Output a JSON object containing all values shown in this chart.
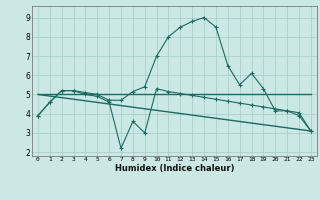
{
  "xlabel": "Humidex (Indice chaleur)",
  "bg_color": "#cce8e4",
  "grid_color": "#aacfcb",
  "line_color": "#1a6b5e",
  "xlim": [
    -0.5,
    23.5
  ],
  "ylim": [
    1.8,
    9.6
  ],
  "yticks": [
    2,
    3,
    4,
    5,
    6,
    7,
    8,
    9
  ],
  "xticks": [
    0,
    1,
    2,
    3,
    4,
    5,
    6,
    7,
    8,
    9,
    10,
    11,
    12,
    13,
    14,
    15,
    16,
    17,
    18,
    19,
    20,
    21,
    22,
    23
  ],
  "series1_x": [
    0,
    1,
    2,
    3,
    4,
    5,
    6,
    7,
    8,
    9,
    10,
    11,
    12,
    13,
    14,
    15,
    16,
    17,
    18,
    19,
    20,
    21,
    22,
    23
  ],
  "series1_y": [
    3.9,
    4.6,
    5.2,
    5.2,
    5.1,
    5.0,
    4.7,
    4.7,
    5.15,
    5.4,
    7.0,
    8.0,
    8.5,
    8.8,
    9.0,
    8.5,
    6.5,
    5.5,
    6.1,
    5.3,
    4.15,
    4.15,
    3.9,
    3.1
  ],
  "series2_x": [
    0,
    1,
    2,
    3,
    4,
    5,
    6,
    7,
    8,
    9,
    10,
    11,
    12,
    13,
    14,
    15,
    16,
    17,
    18,
    19,
    20,
    21,
    22,
    23
  ],
  "series2_y": [
    3.9,
    4.6,
    5.2,
    5.2,
    5.0,
    4.9,
    4.6,
    2.2,
    3.6,
    3.0,
    5.3,
    5.15,
    5.05,
    4.95,
    4.85,
    4.75,
    4.65,
    4.55,
    4.45,
    4.35,
    4.25,
    4.15,
    4.05,
    3.1
  ],
  "series3_x": [
    0,
    23
  ],
  "series3_y": [
    5.0,
    5.0
  ],
  "series4_x": [
    0,
    23
  ],
  "series4_y": [
    5.0,
    3.1
  ]
}
